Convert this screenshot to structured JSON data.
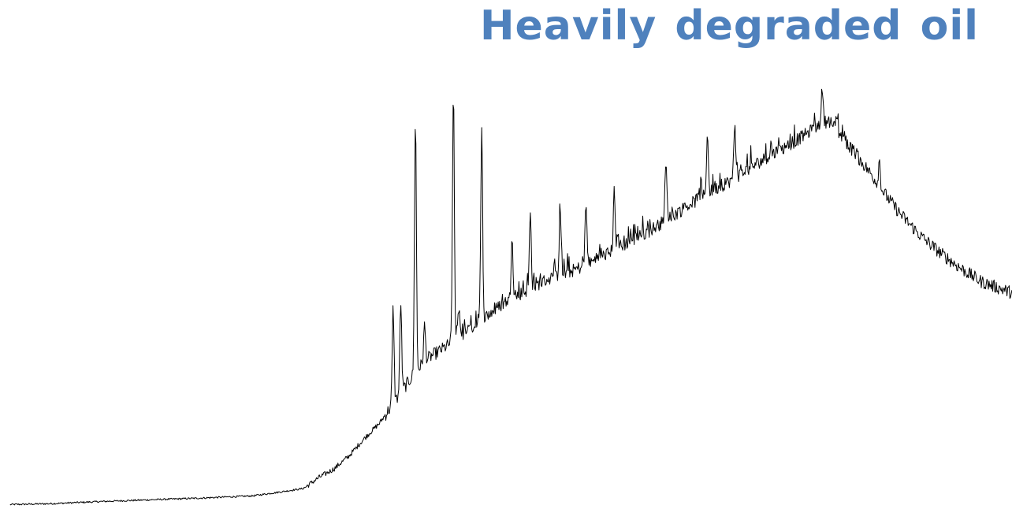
{
  "chart_data": {
    "type": "line",
    "title": "Heavily degraded oil",
    "xlabel": "",
    "ylabel": "",
    "axes_visible": false,
    "grid": false,
    "title_color": "#4f81bd",
    "line_color": "#000000",
    "series": [
      {
        "baseline_points": [
          [
            0.01,
            0.003
          ],
          [
            0.05,
            0.005
          ],
          [
            0.1,
            0.01
          ],
          [
            0.15,
            0.014
          ],
          [
            0.2,
            0.018
          ],
          [
            0.25,
            0.023
          ],
          [
            0.28,
            0.033
          ],
          [
            0.3,
            0.04
          ],
          [
            0.315,
            0.065
          ],
          [
            0.33,
            0.085
          ],
          [
            0.345,
            0.115
          ],
          [
            0.36,
            0.155
          ],
          [
            0.375,
            0.19
          ],
          [
            0.39,
            0.24
          ],
          [
            0.405,
            0.29
          ],
          [
            0.42,
            0.335
          ],
          [
            0.44,
            0.365
          ],
          [
            0.46,
            0.4
          ],
          [
            0.48,
            0.435
          ],
          [
            0.5,
            0.47
          ],
          [
            0.52,
            0.495
          ],
          [
            0.54,
            0.52
          ],
          [
            0.56,
            0.535
          ],
          [
            0.58,
            0.555
          ],
          [
            0.6,
            0.58
          ],
          [
            0.62,
            0.605
          ],
          [
            0.64,
            0.63
          ],
          [
            0.66,
            0.66
          ],
          [
            0.68,
            0.69
          ],
          [
            0.7,
            0.72
          ],
          [
            0.72,
            0.745
          ],
          [
            0.74,
            0.775
          ],
          [
            0.76,
            0.805
          ],
          [
            0.78,
            0.83
          ],
          [
            0.8,
            0.86
          ],
          [
            0.812,
            0.88
          ],
          [
            0.82,
            0.885
          ],
          [
            0.83,
            0.855
          ],
          [
            0.845,
            0.81
          ],
          [
            0.86,
            0.765
          ],
          [
            0.875,
            0.715
          ],
          [
            0.89,
            0.67
          ],
          [
            0.91,
            0.62
          ],
          [
            0.93,
            0.58
          ],
          [
            0.95,
            0.545
          ],
          [
            0.97,
            0.515
          ],
          [
            1.0,
            0.49
          ]
        ],
        "peaks": [
          {
            "x": 0.3885,
            "height": 0.22
          },
          {
            "x": 0.396,
            "height": 0.21
          },
          {
            "x": 0.4105,
            "height": 0.59
          },
          {
            "x": 0.4195,
            "height": 0.08
          },
          {
            "x": 0.448,
            "height": 0.58
          },
          {
            "x": 0.4535,
            "height": 0.07
          },
          {
            "x": 0.476,
            "height": 0.43
          },
          {
            "x": 0.506,
            "height": 0.15
          },
          {
            "x": 0.524,
            "height": 0.17
          },
          {
            "x": 0.5535,
            "height": 0.16
          },
          {
            "x": 0.579,
            "height": 0.14
          },
          {
            "x": 0.607,
            "height": 0.14
          },
          {
            "x": 0.658,
            "height": 0.13
          },
          {
            "x": 0.699,
            "height": 0.14
          },
          {
            "x": 0.726,
            "height": 0.12
          },
          {
            "x": 0.8125,
            "height": 0.08
          },
          {
            "x": 0.869,
            "height": 0.06
          }
        ]
      }
    ]
  }
}
